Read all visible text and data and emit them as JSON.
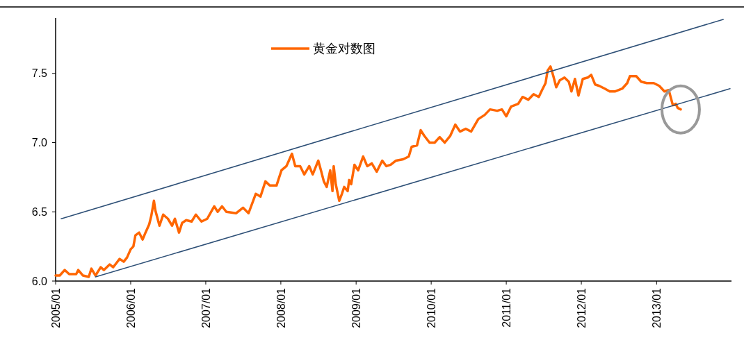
{
  "chart_data": {
    "type": "line",
    "legend": "top",
    "grid": false,
    "xlim": [
      "2005-01-01",
      "2013-12-31"
    ],
    "ylim": [
      6,
      7.9
    ],
    "yticks": [
      {
        "value": 6,
        "label": "6.0"
      },
      {
        "value": 6.5,
        "label": "6.5"
      },
      {
        "value": 7,
        "label": "7.0"
      },
      {
        "value": 7.5,
        "label": "7.5"
      }
    ],
    "xticks": [
      {
        "value": "2005-01",
        "label": "2005/01"
      },
      {
        "value": "2006-01",
        "label": "2006/01"
      },
      {
        "value": "2007-01",
        "label": "2007/01"
      },
      {
        "value": "2008-01",
        "label": "2008/01"
      },
      {
        "value": "2009-01",
        "label": "2009/01"
      },
      {
        "value": "2010-01",
        "label": "2010/01"
      },
      {
        "value": "2011-01",
        "label": "2011/01"
      },
      {
        "value": "2012-01",
        "label": "2012/01"
      },
      {
        "value": "2013-01",
        "label": "2013/01"
      }
    ],
    "series": [
      {
        "name": "黄金对数图",
        "color": "#ff6600",
        "x": [
          "2005-01-01",
          "2005-01-21",
          "2005-02-14",
          "2005-03-08",
          "2005-04-11",
          "2005-04-21",
          "2005-05-14",
          "2005-06-11",
          "2005-06-24",
          "2005-07-14",
          "2005-08-08",
          "2005-08-24",
          "2005-09-21",
          "2005-10-08",
          "2005-11-08",
          "2005-11-28",
          "2005-12-14",
          "2006-01-01",
          "2006-01-14",
          "2006-01-24",
          "2006-02-11",
          "2006-02-28",
          "2006-03-14",
          "2006-04-01",
          "2006-04-11",
          "2006-04-24",
          "2006-05-01",
          "2006-05-21",
          "2006-06-08",
          "2006-07-01",
          "2006-07-21",
          "2006-08-04",
          "2006-08-24",
          "2006-09-08",
          "2006-09-28",
          "2006-10-24",
          "2006-11-14",
          "2006-12-11",
          "2007-01-08",
          "2007-02-11",
          "2007-02-28",
          "2007-03-21",
          "2007-04-11",
          "2007-05-28",
          "2007-07-01",
          "2007-07-28",
          "2007-09-01",
          "2007-09-24",
          "2007-10-18",
          "2007-11-08",
          "2007-12-11",
          "2008-01-04",
          "2008-01-28",
          "2008-02-24",
          "2008-03-11",
          "2008-04-04",
          "2008-04-24",
          "2008-05-18",
          "2008-06-04",
          "2008-07-01",
          "2008-07-14",
          "2008-07-28",
          "2008-08-11",
          "2008-08-28",
          "2008-09-08",
          "2008-09-14",
          "2008-09-24",
          "2008-10-11",
          "2008-10-24",
          "2008-11-04",
          "2008-11-21",
          "2008-11-28",
          "2008-12-08",
          "2008-12-24",
          "2009-01-11",
          "2009-02-04",
          "2009-02-24",
          "2009-03-18",
          "2009-04-11",
          "2009-05-08",
          "2009-05-28",
          "2009-06-18",
          "2009-07-14",
          "2009-08-18",
          "2009-09-14",
          "2009-09-28",
          "2009-10-24",
          "2009-11-11",
          "2009-11-28",
          "2009-12-24",
          "2010-01-18",
          "2010-02-11",
          "2010-03-08",
          "2010-04-04",
          "2010-04-28",
          "2010-05-21",
          "2010-06-18",
          "2010-07-14",
          "2010-08-18",
          "2010-09-18",
          "2010-10-14",
          "2010-11-18",
          "2010-12-11",
          "2011-01-01",
          "2011-01-24",
          "2011-02-28",
          "2011-03-21",
          "2011-04-18",
          "2011-05-14",
          "2011-06-08",
          "2011-06-24",
          "2011-07-11",
          "2011-07-21",
          "2011-08-04",
          "2011-08-18",
          "2011-09-01",
          "2011-09-18",
          "2011-10-11",
          "2011-11-01",
          "2011-11-14",
          "2011-12-01",
          "2011-12-18",
          "2012-01-08",
          "2012-02-01",
          "2012-02-18",
          "2012-03-08",
          "2012-03-28",
          "2012-04-24",
          "2012-05-18",
          "2012-06-14",
          "2012-07-18",
          "2012-08-11",
          "2012-08-24",
          "2012-09-24",
          "2012-10-18",
          "2012-11-14",
          "2012-12-18",
          "2013-01-14",
          "2013-02-08",
          "2013-03-01",
          "2013-03-21",
          "2013-04-04",
          "2013-04-14",
          "2013-04-28"
        ],
        "values": [
          6.04,
          6.04,
          6.08,
          6.05,
          6.05,
          6.08,
          6.04,
          6.03,
          6.09,
          6.04,
          6.1,
          6.08,
          6.12,
          6.1,
          6.16,
          6.14,
          6.17,
          6.23,
          6.25,
          6.33,
          6.35,
          6.3,
          6.35,
          6.41,
          6.47,
          6.58,
          6.51,
          6.4,
          6.48,
          6.45,
          6.4,
          6.45,
          6.35,
          6.42,
          6.44,
          6.43,
          6.48,
          6.43,
          6.45,
          6.54,
          6.5,
          6.54,
          6.5,
          6.49,
          6.53,
          6.49,
          6.63,
          6.61,
          6.72,
          6.69,
          6.69,
          6.8,
          6.83,
          6.92,
          6.83,
          6.83,
          6.77,
          6.83,
          6.77,
          6.87,
          6.8,
          6.72,
          6.68,
          6.8,
          6.65,
          6.83,
          6.7,
          6.58,
          6.63,
          6.68,
          6.65,
          6.73,
          6.7,
          6.84,
          6.8,
          6.9,
          6.83,
          6.85,
          6.79,
          6.87,
          6.83,
          6.84,
          6.87,
          6.88,
          6.9,
          6.97,
          6.98,
          7.09,
          7.05,
          7.0,
          7.0,
          7.04,
          7.0,
          7.05,
          7.13,
          7.08,
          7.1,
          7.08,
          7.17,
          7.2,
          7.24,
          7.23,
          7.24,
          7.19,
          7.26,
          7.28,
          7.33,
          7.31,
          7.35,
          7.33,
          7.38,
          7.43,
          7.52,
          7.55,
          7.48,
          7.4,
          7.45,
          7.47,
          7.44,
          7.37,
          7.46,
          7.34,
          7.46,
          7.47,
          7.49,
          7.42,
          7.41,
          7.39,
          7.37,
          7.37,
          7.39,
          7.43,
          7.48,
          7.48,
          7.44,
          7.43,
          7.43,
          7.41,
          7.37,
          7.38,
          7.27,
          7.28,
          7.25,
          7.24
        ]
      },
      {
        "color": "#2e5077",
        "type": "line",
        "x": [
          "2005-01-28",
          "2013-11-21"
        ],
        "values": [
          6.45,
          7.89
        ]
      },
      {
        "color": "#2e5077",
        "type": "line",
        "x": [
          "2005-07-14",
          "2013-12-24"
        ],
        "values": [
          6.03,
          7.39
        ]
      }
    ]
  }
}
